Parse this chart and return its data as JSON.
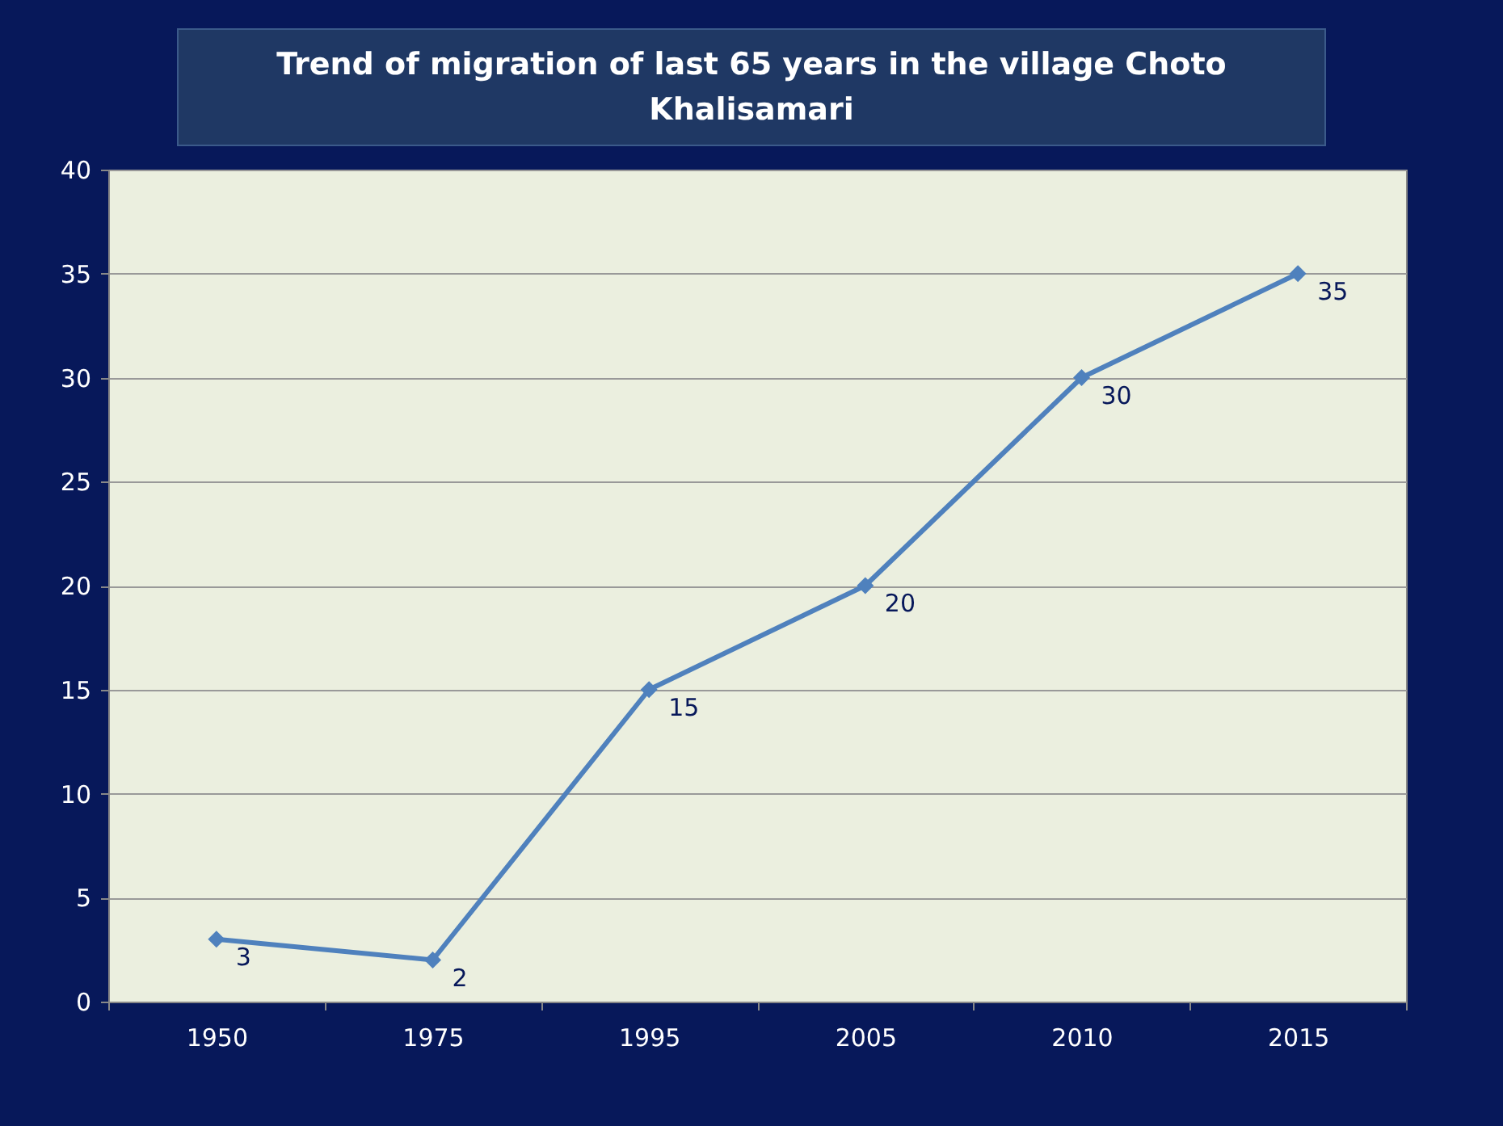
{
  "chart_data": {
    "type": "line",
    "title": "Trend of migration of last 65 years  in the village Choto Khalisamari",
    "categories": [
      "1950",
      "1975",
      "1995",
      "2005",
      "2010",
      "2015"
    ],
    "series": [
      {
        "color": "#4f81bd",
        "values": [
          3,
          2,
          15,
          20,
          30,
          35
        ]
      }
    ],
    "ylim": [
      0,
      40
    ],
    "yticks": [
      0,
      5,
      10,
      15,
      20,
      25,
      30,
      35,
      40
    ],
    "grid": "y",
    "marker": "diamond",
    "data_labels": true
  }
}
